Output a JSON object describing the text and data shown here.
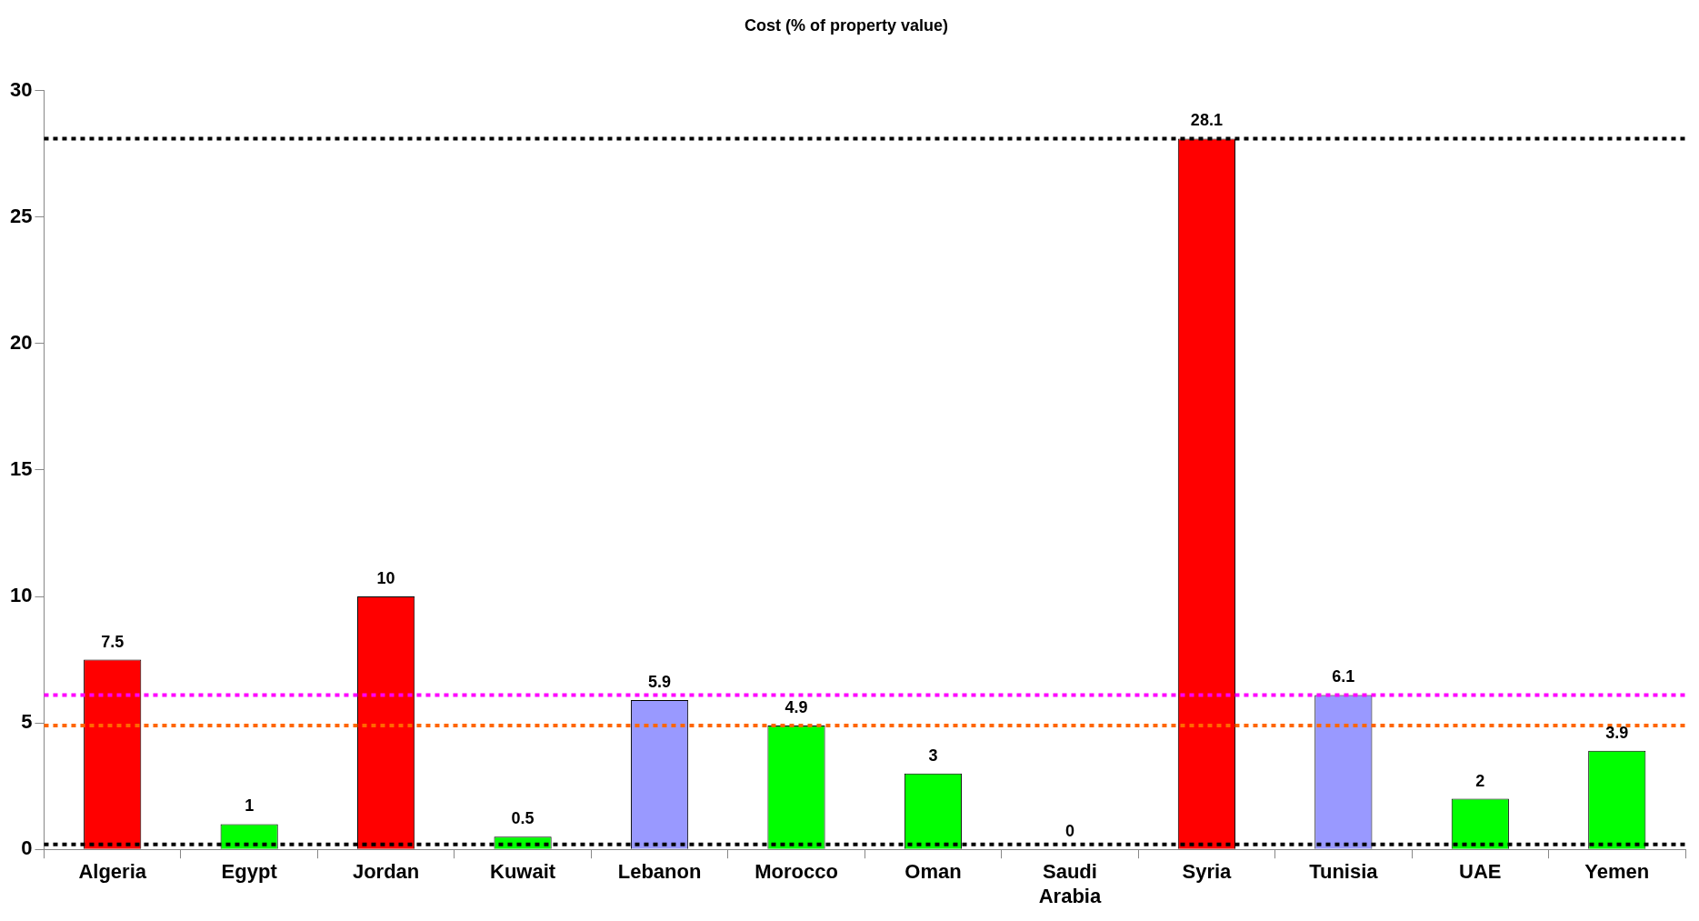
{
  "chart_data": {
    "type": "bar",
    "title": "Cost (% of property value)",
    "categories": [
      "Algeria",
      "Egypt",
      "Jordan",
      "Kuwait",
      "Lebanon",
      "Morocco",
      "Oman",
      "Saudi Arabia",
      "Syria",
      "Tunisia",
      "UAE",
      "Yemen"
    ],
    "values": [
      7.5,
      1,
      10,
      0.5,
      5.9,
      4.9,
      3,
      0,
      28.1,
      6.1,
      2,
      3.9
    ],
    "colors": [
      "#ff0000",
      "#00ff00",
      "#ff0000",
      "#00ff00",
      "#9999ff",
      "#00ff00",
      "#00ff00",
      "#00ff00",
      "#ff0000",
      "#9999ff",
      "#00ff00",
      "#00ff00"
    ],
    "ylim": [
      0,
      30
    ],
    "yticks": [
      0,
      5,
      10,
      15,
      20,
      25,
      30
    ],
    "grid": false,
    "legend": false,
    "data_labels": true,
    "ref_lines": [
      {
        "axis": "y",
        "value": 28.1,
        "color": "#000000",
        "line_style": "dotted"
      },
      {
        "axis": "y",
        "value": 6.1,
        "color": "#ff00ff",
        "line_style": "dotted"
      },
      {
        "axis": "y",
        "value": 4.9,
        "color": "#ff6600",
        "line_style": "dotted"
      },
      {
        "axis": "y",
        "value": 0.2,
        "color": "#000000",
        "line_style": "dotted"
      }
    ]
  }
}
